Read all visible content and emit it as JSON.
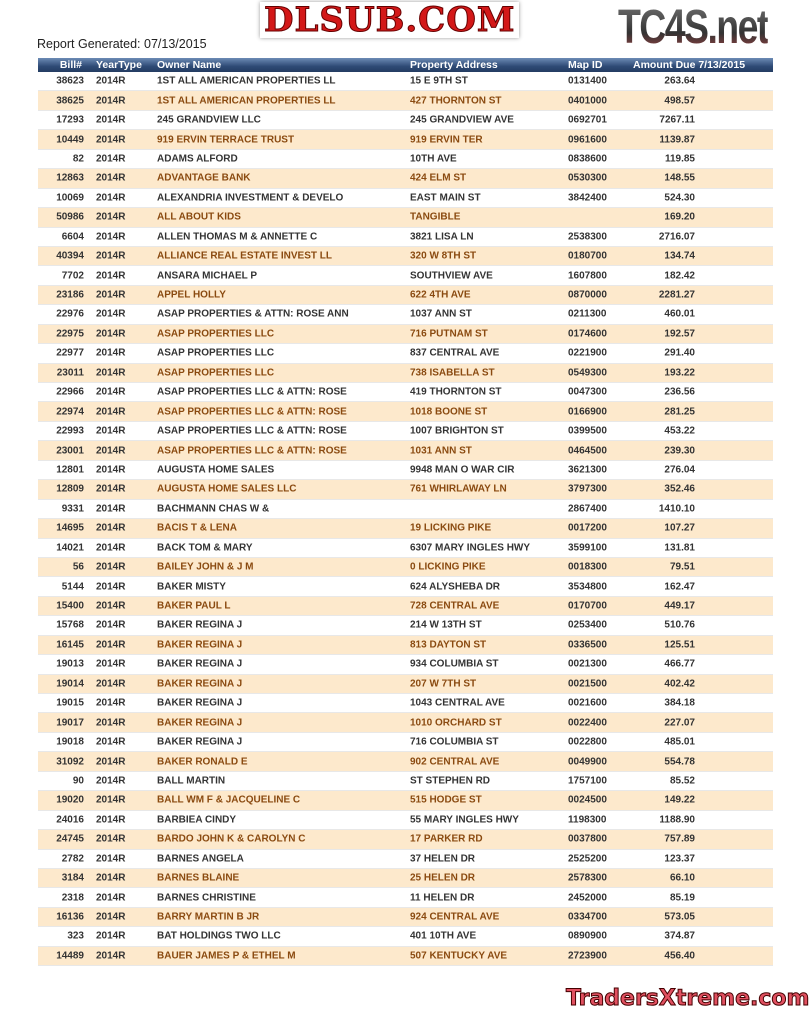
{
  "report_generated": "Report Generated: 07/13/2015",
  "logo": "TC4S.net",
  "watermark": "DLSUB.COM",
  "watermark2": "TradersXtreme.com",
  "columns": [
    "Bill#",
    "YearType",
    "Owner Name",
    "Property Address",
    "Map ID",
    "Amount Due  7/13/2015"
  ],
  "rows": [
    [
      "38623",
      "2014R",
      "1ST ALL AMERICAN PROPERTIES LL",
      "15 E 9TH ST",
      "0131400",
      "263.64"
    ],
    [
      "38625",
      "2014R",
      "1ST ALL AMERICAN PROPERTIES LL",
      "427 THORNTON ST",
      "0401000",
      "498.57"
    ],
    [
      "17293",
      "2014R",
      "245 GRANDVIEW LLC",
      "245 GRANDVIEW AVE",
      "0692701",
      "7267.11"
    ],
    [
      "10449",
      "2014R",
      "919 ERVIN TERRACE TRUST",
      "919 ERVIN TER",
      "0961600",
      "1139.87"
    ],
    [
      "82",
      "2014R",
      "ADAMS ALFORD",
      " 10TH AVE",
      "0838600",
      "119.85"
    ],
    [
      "12863",
      "2014R",
      "ADVANTAGE BANK",
      "424 ELM ST",
      "0530300",
      "148.55"
    ],
    [
      "10069",
      "2014R",
      "ALEXANDRIA INVESTMENT & DEVELO",
      " EAST MAIN ST",
      "3842400",
      "524.30"
    ],
    [
      "50986",
      "2014R",
      "ALL ABOUT KIDS",
      "TANGIBLE",
      "",
      "169.20"
    ],
    [
      "6604",
      "2014R",
      "ALLEN THOMAS M & ANNETTE C",
      "3821 LISA LN",
      "2538300",
      "2716.07"
    ],
    [
      "40394",
      "2014R",
      "ALLIANCE REAL ESTATE INVEST LL",
      "320 W 8TH ST",
      "0180700",
      "134.74"
    ],
    [
      "7702",
      "2014R",
      "ANSARA MICHAEL P",
      " SOUTHVIEW AVE",
      "1607800",
      "182.42"
    ],
    [
      "23186",
      "2014R",
      "APPEL HOLLY",
      "622 4TH AVE",
      "0870000",
      "2281.27"
    ],
    [
      "22976",
      "2014R",
      "ASAP PROPERTIES & ATTN: ROSE ANN",
      "1037 ANN ST",
      "0211300",
      "460.01"
    ],
    [
      "22975",
      "2014R",
      "ASAP PROPERTIES LLC",
      "716 PUTNAM ST",
      "0174600",
      "192.57"
    ],
    [
      "22977",
      "2014R",
      "ASAP PROPERTIES LLC",
      "837 CENTRAL AVE",
      "0221900",
      "291.40"
    ],
    [
      "23011",
      "2014R",
      "ASAP PROPERTIES LLC",
      "738 ISABELLA ST",
      "0549300",
      "193.22"
    ],
    [
      "22966",
      "2014R",
      "ASAP PROPERTIES LLC & ATTN: ROSE",
      "419 THORNTON ST",
      "0047300",
      "236.56"
    ],
    [
      "22974",
      "2014R",
      "ASAP PROPERTIES LLC & ATTN: ROSE",
      "1018 BOONE ST",
      "0166900",
      "281.25"
    ],
    [
      "22993",
      "2014R",
      "ASAP PROPERTIES LLC & ATTN: ROSE",
      "1007 BRIGHTON ST",
      "0399500",
      "453.22"
    ],
    [
      "23001",
      "2014R",
      "ASAP PROPERTIES LLC & ATTN: ROSE",
      "1031 ANN ST",
      "0464500",
      "239.30"
    ],
    [
      "12801",
      "2014R",
      "AUGUSTA HOME SALES",
      "9948 MAN O WAR CIR",
      "3621300",
      "276.04"
    ],
    [
      "12809",
      "2014R",
      "AUGUSTA HOME SALES LLC",
      "761 WHIRLAWAY LN",
      "3797300",
      "352.46"
    ],
    [
      "9331",
      "2014R",
      "BACHMANN CHAS W &",
      "",
      "2867400",
      "1410.10"
    ],
    [
      "14695",
      "2014R",
      "BACIS T & LENA",
      "19 LICKING PIKE",
      "0017200",
      "107.27"
    ],
    [
      "14021",
      "2014R",
      "BACK TOM & MARY",
      "6307 MARY INGLES HWY",
      "3599100",
      "131.81"
    ],
    [
      "56",
      "2014R",
      "BAILEY JOHN & J M",
      "0 LICKING PIKE",
      "0018300",
      "79.51"
    ],
    [
      "5144",
      "2014R",
      "BAKER MISTY",
      "624 ALYSHEBA DR",
      "3534800",
      "162.47"
    ],
    [
      "15400",
      "2014R",
      "BAKER PAUL L",
      "728 CENTRAL AVE",
      "0170700",
      "449.17"
    ],
    [
      "15768",
      "2014R",
      "BAKER REGINA J",
      "214 W 13TH ST",
      "0253400",
      "510.76"
    ],
    [
      "16145",
      "2014R",
      "BAKER REGINA J",
      "813 DAYTON ST",
      "0336500",
      "125.51"
    ],
    [
      "19013",
      "2014R",
      "BAKER REGINA J",
      "934 COLUMBIA ST",
      "0021300",
      "466.77"
    ],
    [
      "19014",
      "2014R",
      "BAKER REGINA J",
      "207 W 7TH ST",
      "0021500",
      "402.42"
    ],
    [
      "19015",
      "2014R",
      "BAKER REGINA J",
      "1043 CENTRAL AVE",
      "0021600",
      "384.18"
    ],
    [
      "19017",
      "2014R",
      "BAKER REGINA J",
      "1010 ORCHARD ST",
      "0022400",
      "227.07"
    ],
    [
      "19018",
      "2014R",
      "BAKER REGINA J",
      "716 COLUMBIA ST",
      "0022800",
      "485.01"
    ],
    [
      "31092",
      "2014R",
      "BAKER RONALD E",
      "902 CENTRAL AVE",
      "0049900",
      "554.78"
    ],
    [
      "90",
      "2014R",
      "BALL MARTIN",
      " ST STEPHEN RD",
      "1757100",
      "85.52"
    ],
    [
      "19020",
      "2014R",
      "BALL WM F & JACQUELINE C",
      "515 HODGE ST",
      "0024500",
      "149.22"
    ],
    [
      "24016",
      "2014R",
      "BARBIEA CINDY",
      "55 MARY INGLES HWY",
      "1198300",
      "1188.90"
    ],
    [
      "24745",
      "2014R",
      "BARDO JOHN K & CAROLYN C",
      "17 PARKER RD",
      "0037800",
      "757.89"
    ],
    [
      "2782",
      "2014R",
      "BARNES ANGELA",
      "37 HELEN DR",
      "2525200",
      "123.37"
    ],
    [
      "3184",
      "2014R",
      "BARNES BLAINE",
      "25 HELEN DR",
      "2578300",
      "66.10"
    ],
    [
      "2318",
      "2014R",
      "BARNES CHRISTINE",
      "11 HELEN DR",
      "2452000",
      "85.19"
    ],
    [
      "16136",
      "2014R",
      "BARRY MARTIN B JR",
      "924 CENTRAL AVE",
      "0334700",
      "573.05"
    ],
    [
      "323",
      "2014R",
      "BAT HOLDINGS TWO LLC",
      "401 10TH AVE",
      "0890900",
      "374.87"
    ],
    [
      "14489",
      "2014R",
      "BAUER JAMES P & ETHEL M",
      "507 KENTUCKY AVE",
      "2723900",
      "456.40"
    ]
  ]
}
